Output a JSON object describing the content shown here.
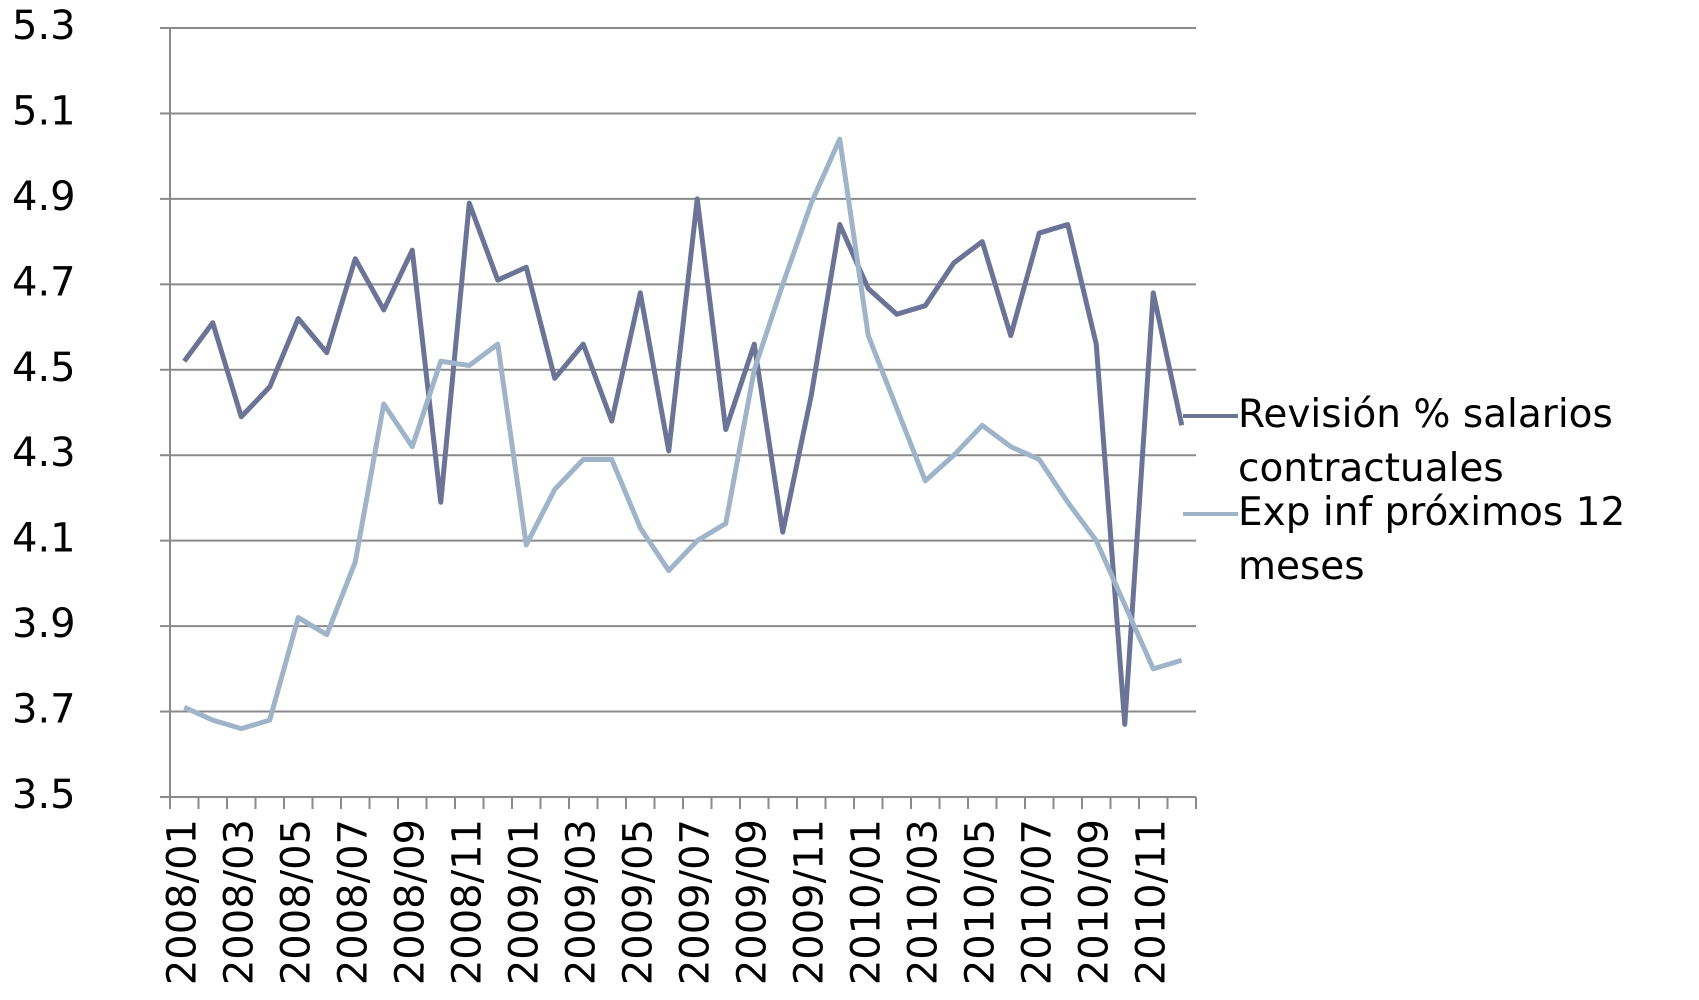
{
  "chart_data": {
    "type": "line",
    "categories": [
      "2008/01",
      null,
      "2008/03",
      null,
      "2008/05",
      null,
      "2008/07",
      null,
      "2008/09",
      null,
      "2008/11",
      null,
      "2009/01",
      null,
      "2009/03",
      null,
      "2009/05",
      null,
      "2009/07",
      null,
      "2009/09",
      null,
      "2009/11",
      null,
      "2010/01",
      null,
      "2010/03",
      null,
      "2010/05",
      null,
      "2010/07",
      null,
      "2010/09",
      null,
      "2010/11",
      null
    ],
    "series": [
      {
        "name": "Revisión % salarios contractuales",
        "color": "#6b7496",
        "values": [
          4.52,
          4.61,
          4.39,
          4.46,
          4.62,
          4.54,
          4.76,
          4.64,
          4.78,
          4.19,
          4.89,
          4.71,
          4.74,
          4.48,
          4.56,
          4.38,
          4.68,
          4.31,
          4.9,
          4.36,
          4.56,
          4.12,
          4.44,
          4.84,
          4.69,
          4.63,
          4.65,
          4.75,
          4.8,
          4.58,
          4.82,
          4.84,
          4.56,
          3.67,
          4.68,
          4.37
        ]
      },
      {
        "name": "Exp inf próximos 12 meses",
        "color": "#9fb4c8",
        "values": [
          3.71,
          3.68,
          3.66,
          3.68,
          3.92,
          3.88,
          4.05,
          4.42,
          4.32,
          4.52,
          4.51,
          4.56,
          4.09,
          4.22,
          4.29,
          4.29,
          4.13,
          4.03,
          4.1,
          4.14,
          4.5,
          4.7,
          4.89,
          5.04,
          4.58,
          4.41,
          4.24,
          4.3,
          4.37,
          4.32,
          4.29,
          4.19,
          4.1,
          3.95,
          3.8,
          3.82
        ]
      }
    ],
    "ylim": [
      3.5,
      5.3
    ],
    "yticks": [
      3.5,
      3.7,
      3.9,
      4.1,
      4.3,
      4.5,
      4.7,
      4.9,
      5.1,
      5.3
    ],
    "grid": true,
    "legend": "right"
  }
}
